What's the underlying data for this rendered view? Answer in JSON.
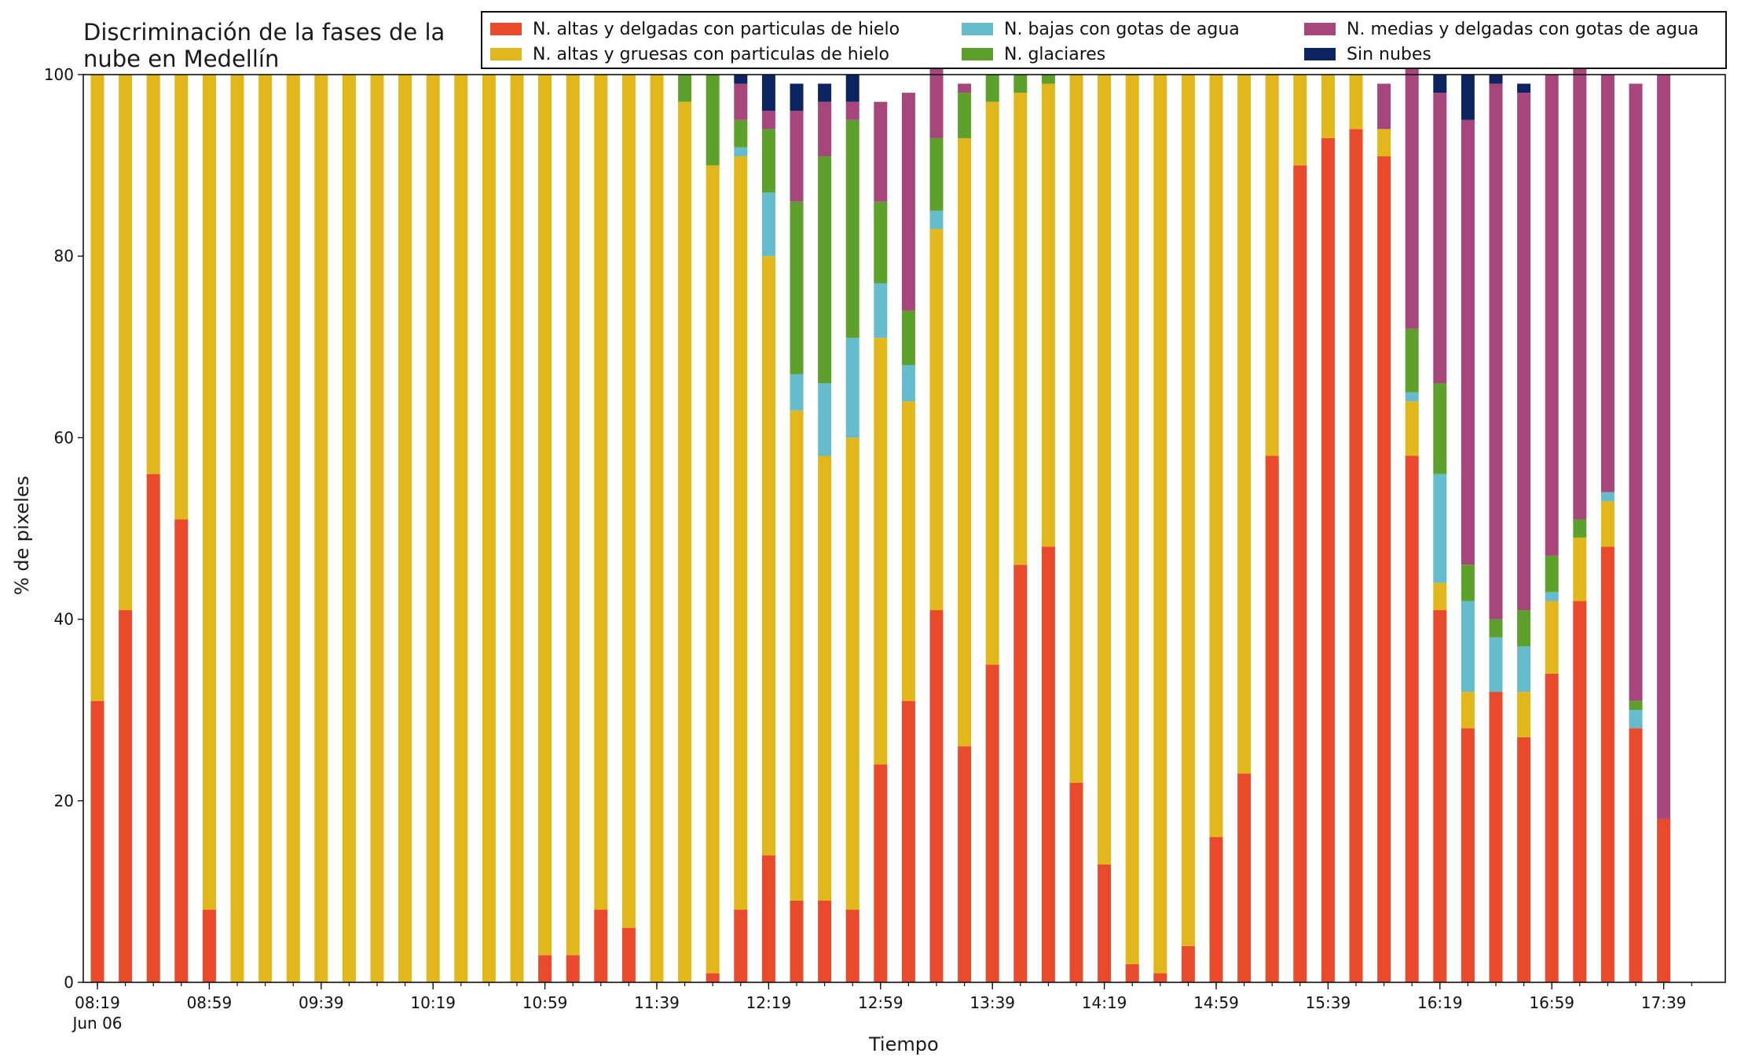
{
  "chart_data": {
    "type": "bar",
    "stacked": true,
    "title": "Discriminación de la fases de la nube en Medellín",
    "title_lines": [
      "Discriminación de la fases de la",
      "nube en Medellín"
    ],
    "xlabel": "Tiempo",
    "ylabel": "% de pixeles",
    "ylim": [
      0,
      100
    ],
    "y_ticks": [
      0,
      20,
      40,
      60,
      80,
      100
    ],
    "x_tick_labels": [
      "08:19",
      "08:59",
      "09:39",
      "10:19",
      "10:59",
      "11:39",
      "12:19",
      "12:59",
      "13:39",
      "14:19",
      "14:59",
      "15:39",
      "16:19",
      "16:59",
      "17:39"
    ],
    "x_date_label": "Jun 06",
    "legend_position": "top-right",
    "grid": false,
    "series": [
      {
        "name": "N. altas y delgadas con particulas de hielo",
        "color": "#ea4a2c",
        "values": [
          31,
          41,
          56,
          51,
          8,
          0,
          0,
          0,
          0,
          0,
          0,
          0,
          0,
          0,
          0,
          0,
          3,
          3,
          8,
          6,
          0,
          0,
          1,
          8,
          14,
          9,
          9,
          8,
          24,
          31,
          41,
          26,
          35,
          46,
          48,
          22,
          13,
          2,
          1,
          4,
          16,
          23,
          58,
          90,
          93,
          94,
          91,
          58,
          41,
          28,
          32,
          27,
          34,
          42,
          48,
          28,
          18
        ]
      },
      {
        "name": "N. altas y gruesas con particulas de hielo",
        "color": "#e2b71b",
        "values": [
          69,
          59,
          44,
          49,
          92,
          100,
          100,
          100,
          100,
          100,
          100,
          100,
          100,
          100,
          100,
          100,
          97,
          97,
          92,
          94,
          100,
          97,
          89,
          83,
          66,
          54,
          49,
          52,
          47,
          33,
          42,
          67,
          62,
          52,
          51,
          78,
          87,
          98,
          99,
          96,
          84,
          77,
          42,
          10,
          7,
          6,
          3,
          6,
          3,
          4,
          0,
          5,
          8,
          7,
          5,
          0,
          0
        ]
      },
      {
        "name": "N. bajas con gotas de agua",
        "color": "#64bccd",
        "values": [
          0,
          0,
          0,
          0,
          0,
          0,
          0,
          0,
          0,
          0,
          0,
          0,
          0,
          0,
          0,
          0,
          0,
          0,
          0,
          0,
          0,
          0,
          0,
          1,
          7,
          4,
          8,
          11,
          6,
          4,
          2,
          0,
          0,
          0,
          0,
          0,
          0,
          0,
          0,
          0,
          0,
          0,
          0,
          0,
          0,
          0,
          0,
          1,
          12,
          10,
          6,
          5,
          1,
          0,
          1,
          2,
          0
        ]
      },
      {
        "name": "N. glaciares",
        "color": "#5da02c",
        "values": [
          0,
          0,
          0,
          0,
          0,
          0,
          0,
          0,
          0,
          0,
          0,
          0,
          0,
          0,
          0,
          0,
          0,
          0,
          0,
          0,
          0,
          3,
          10,
          3,
          7,
          19,
          25,
          24,
          9,
          6,
          8,
          5,
          3,
          2,
          1,
          0,
          0,
          0,
          0,
          0,
          0,
          0,
          0,
          0,
          0,
          0,
          0,
          7,
          10,
          4,
          2,
          4,
          4,
          2,
          0,
          1,
          0
        ]
      },
      {
        "name": "N. medias y delgadas con gotas de agua",
        "color": "#a6467a",
        "values": [
          0,
          0,
          0,
          0,
          0,
          0,
          0,
          0,
          0,
          0,
          0,
          0,
          0,
          0,
          0,
          0,
          0,
          0,
          0,
          0,
          0,
          0,
          0,
          4,
          2,
          10,
          6,
          2,
          11,
          24,
          8,
          1,
          0,
          0,
          0,
          0,
          0,
          0,
          0,
          0,
          0,
          0,
          0,
          0,
          0,
          0,
          5,
          29,
          32,
          49,
          59,
          57,
          53,
          50,
          46,
          68,
          82
        ]
      },
      {
        "name": "Sin nubes",
        "color": "#0c2560",
        "values": [
          0,
          0,
          0,
          0,
          0,
          0,
          0,
          0,
          0,
          0,
          0,
          0,
          0,
          0,
          0,
          0,
          0,
          0,
          0,
          0,
          0,
          0,
          0,
          1,
          4,
          3,
          2,
          3,
          0,
          0,
          0,
          0,
          0,
          0,
          0,
          0,
          0,
          0,
          0,
          0,
          0,
          0,
          0,
          0,
          0,
          0,
          0,
          0,
          2,
          5,
          1,
          1,
          0,
          0,
          0,
          0,
          0
        ]
      }
    ]
  }
}
